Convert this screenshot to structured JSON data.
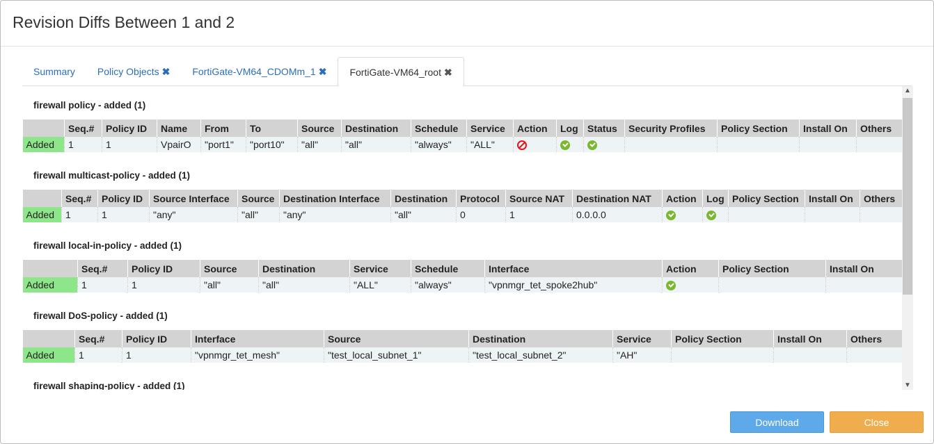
{
  "dialog": {
    "title": "Revision Diffs Between 1 and 2"
  },
  "tabs": [
    {
      "label": "Summary",
      "closable": false,
      "active": false
    },
    {
      "label": "Policy Objects",
      "closable": true,
      "active": false
    },
    {
      "label": "FortiGate-VM64_CDOMm_1",
      "closable": true,
      "active": false
    },
    {
      "label": "FortiGate-VM64_root",
      "closable": true,
      "active": true
    }
  ],
  "close_icon_glyph": "✖",
  "colors": {
    "added": "#8ee68a",
    "check": "#7cb82f",
    "prohibit": "#e8141b",
    "download": "#5ea9ea",
    "close": "#f0ad4e"
  },
  "sections": [
    {
      "title": "firewall policy - added (1)",
      "columns": [
        "",
        "Seq.#",
        "Policy ID",
        "Name",
        "From",
        "To",
        "Source",
        "Destination",
        "Schedule",
        "Service",
        "Action",
        "Log",
        "Status",
        "Security Profiles",
        "Policy Section",
        "Install On",
        "Others"
      ],
      "rows": [
        [
          "Added",
          "1",
          "1",
          "VpairO",
          "\"port1\"",
          "\"port10\"",
          "\"all\"",
          "\"all\"",
          "\"always\"",
          "\"ALL\"",
          {
            "icon": "prohibit-icon"
          },
          {
            "icon": "check-icon"
          },
          {
            "icon": "check-icon"
          },
          "",
          "",
          "",
          ""
        ]
      ]
    },
    {
      "title": "firewall multicast-policy - added (1)",
      "columns": [
        "",
        "Seq.#",
        "Policy ID",
        "Source Interface",
        "Source",
        "Destination Interface",
        "Destination",
        "Protocol",
        "Source NAT",
        "Destination NAT",
        "Action",
        "Log",
        "Policy Section",
        "Install On",
        "Others"
      ],
      "rows": [
        [
          "Added",
          "1",
          "1",
          "\"any\"",
          "\"all\"",
          "\"any\"",
          "\"all\"",
          "0",
          "1",
          "0.0.0.0",
          {
            "icon": "check-icon"
          },
          {
            "icon": "check-icon"
          },
          "",
          "",
          ""
        ]
      ]
    },
    {
      "title": "firewall local-in-policy - added (1)",
      "columns": [
        "",
        "Seq.#",
        "Policy ID",
        "Source",
        "Destination",
        "Service",
        "Schedule",
        "Interface",
        "Action",
        "Policy Section",
        "Install On"
      ],
      "rows": [
        [
          "Added",
          "1",
          "1",
          "\"all\"",
          "\"all\"",
          "\"ALL\"",
          "\"always\"",
          "\"vpnmgr_tet_spoke2hub\"",
          {
            "icon": "check-icon"
          },
          "",
          ""
        ]
      ]
    },
    {
      "title": "firewall DoS-policy - added (1)",
      "columns": [
        "",
        "Seq.#",
        "Policy ID",
        "Interface",
        "Source",
        "Destination",
        "Service",
        "Policy Section",
        "Install On",
        "Others"
      ],
      "rows": [
        [
          "Added",
          "1",
          "1",
          "\"vpnmgr_tet_mesh\"",
          "\"test_local_subnet_1\"",
          "\"test_local_subnet_2\"",
          "\"AH\"",
          "",
          "",
          ""
        ]
      ]
    },
    {
      "title": "firewall shaping-policy - added (1)",
      "columns": [],
      "rows": []
    }
  ],
  "buttons": {
    "download": "Download",
    "close": "Close"
  }
}
